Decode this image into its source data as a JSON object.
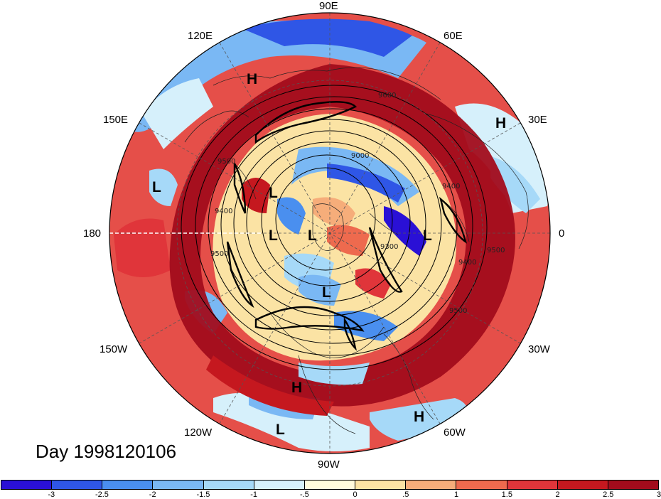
{
  "map": {
    "projection": "north polar stereographic",
    "longitude_labels": [
      {
        "id": "90e",
        "text": "90E"
      },
      {
        "id": "60e",
        "text": "60E"
      },
      {
        "id": "30e",
        "text": "30E"
      },
      {
        "id": "0",
        "text": "0"
      },
      {
        "id": "30w",
        "text": "30W"
      },
      {
        "id": "60w",
        "text": "60W"
      },
      {
        "id": "90w",
        "text": "90W"
      },
      {
        "id": "120w",
        "text": "120W"
      },
      {
        "id": "150w",
        "text": "150W"
      },
      {
        "id": "180",
        "text": "180"
      },
      {
        "id": "150e",
        "text": "150E"
      },
      {
        "id": "120e",
        "text": "120E"
      }
    ],
    "pressure_centers": [
      "H",
      "H",
      "L",
      "L",
      "L",
      "L",
      "L",
      "L",
      "H",
      "L",
      "H"
    ],
    "contour_labels": [
      "9600",
      "9000",
      "9400",
      "9400",
      "9500",
      "9500",
      "9300",
      "9400",
      "9500",
      "9500"
    ]
  },
  "day_label": "Day 1998120106",
  "colorbar": {
    "colors": [
      "#2a10d6",
      "#2f56e6",
      "#4a8fef",
      "#7ab8f4",
      "#a6d9f8",
      "#d6f0fb",
      "#fffbdc",
      "#fbe3a4",
      "#f6ad7a",
      "#ee6a4e",
      "#e0353a",
      "#c5181f",
      "#a20c1c"
    ],
    "tick_labels": [
      "-3",
      "-2.5",
      "-2",
      "-1.5",
      "-1",
      "-.5",
      "0",
      ".5",
      "1",
      "1.5",
      "2",
      "2.5",
      "3"
    ]
  }
}
